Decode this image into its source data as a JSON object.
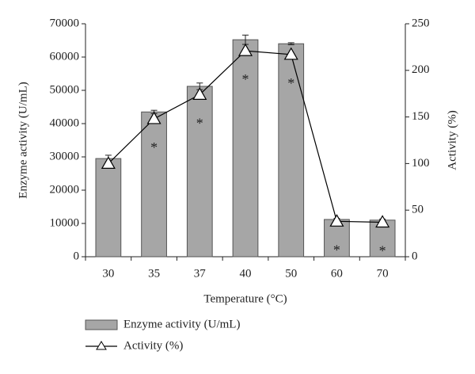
{
  "chart_data": {
    "type": "bar-line",
    "x_label": "Temperature (°C)",
    "y_label": "Enzyme activity (U/mL)",
    "y2_label": "Activity (%)",
    "categories": [
      "30",
      "35",
      "37",
      "40",
      "50",
      "60",
      "70"
    ],
    "series": [
      {
        "name": "Enzyme activity (U/mL)",
        "type": "bar",
        "color": "#a6a6a6",
        "values": [
          29500,
          43500,
          51200,
          65200,
          64000,
          11200,
          11000
        ],
        "errors": [
          1000,
          500,
          1000,
          1400,
          300,
          300,
          300
        ]
      },
      {
        "name": "Activity (%)",
        "type": "line",
        "axis": "y2",
        "color": "#000000",
        "values": [
          100,
          148,
          174,
          221,
          217,
          38,
          37
        ]
      }
    ],
    "significance": [
      null,
      "*",
      "*",
      "*",
      "*",
      "*",
      "*"
    ],
    "ylim": [
      0,
      70000
    ],
    "yticks": [
      0,
      10000,
      20000,
      30000,
      40000,
      50000,
      60000,
      70000
    ],
    "y2lim": [
      0,
      250
    ],
    "y2ticks": [
      0,
      50,
      100,
      150,
      200,
      250
    ]
  }
}
